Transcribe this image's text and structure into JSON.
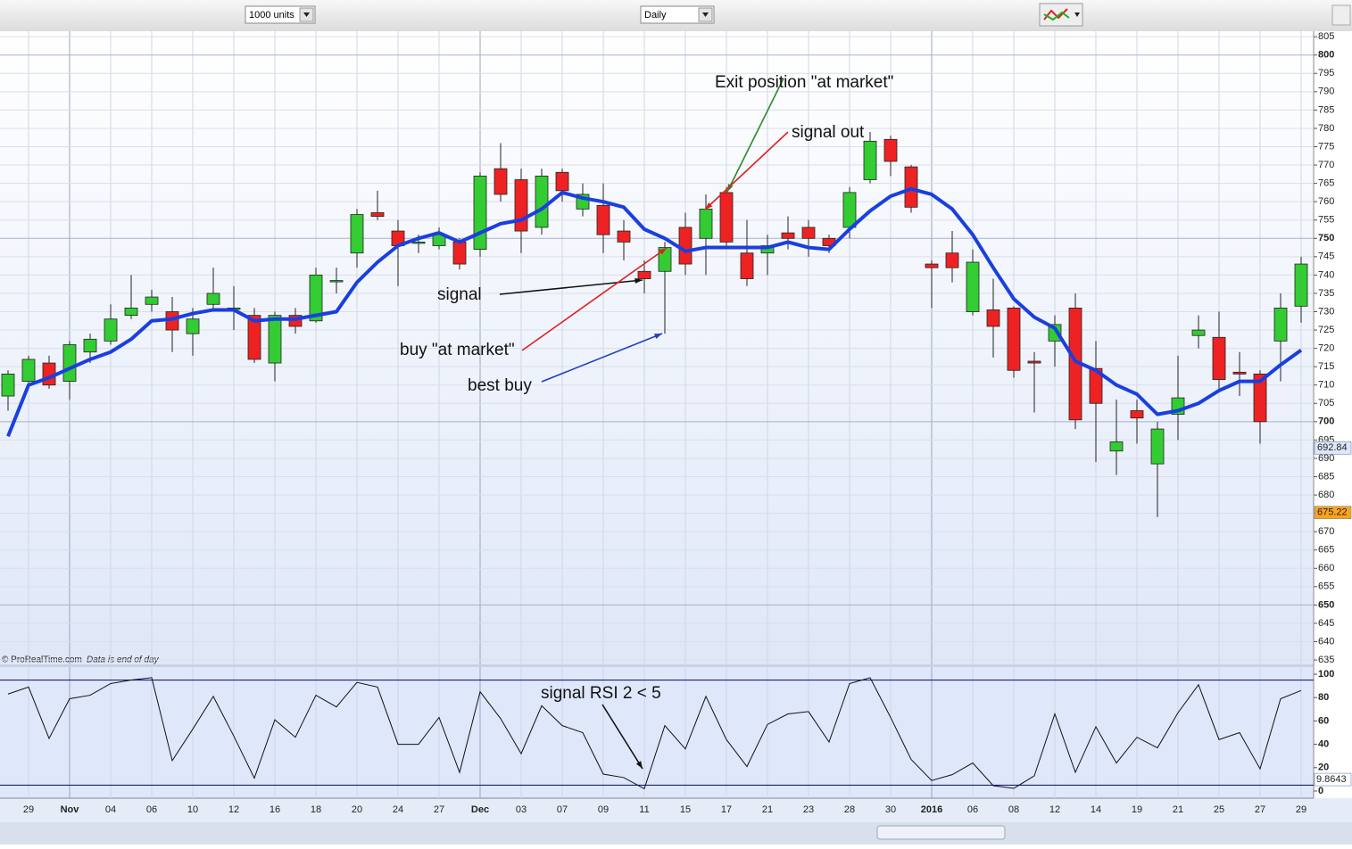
{
  "toolbar": {
    "units": "1000 units",
    "timeframe": "Daily"
  },
  "footer": {
    "source": "© ProRealTime.com",
    "note": "Data is end of day"
  },
  "chart_data": [
    {
      "type": "candlestick",
      "categories": [
        null,
        "29",
        null,
        "Nov",
        null,
        "04",
        null,
        "06",
        null,
        "10",
        null,
        "12",
        null,
        "16",
        null,
        "18",
        null,
        "20",
        null,
        "24",
        null,
        "27",
        null,
        "Dec",
        null,
        "03",
        null,
        "07",
        null,
        "09",
        null,
        "11",
        null,
        "15",
        null,
        "17",
        null,
        "21",
        null,
        "23",
        null,
        "28",
        null,
        "30",
        null,
        "2016",
        null,
        "06",
        null,
        "08",
        null,
        "12",
        null,
        "14",
        null,
        "19",
        null,
        "21",
        null,
        "25",
        null,
        "27",
        null,
        "29"
      ],
      "open": [
        707,
        711,
        716,
        711,
        719,
        722,
        729,
        732,
        730,
        724,
        732,
        731,
        729,
        716,
        729,
        727.5,
        738.5,
        746,
        757,
        752,
        749,
        748,
        749,
        747,
        769,
        766,
        753,
        768,
        758,
        759,
        752,
        741,
        741,
        753,
        750,
        762.5,
        746,
        746,
        751.5,
        753,
        750,
        753,
        766,
        777,
        769.5,
        743,
        746,
        730,
        730.5,
        731,
        716.5,
        722,
        731,
        714.5,
        692,
        703,
        688.5,
        702,
        723.5,
        723,
        713.5,
        713,
        722,
        731.5
      ],
      "high": [
        714,
        718,
        718,
        722,
        724,
        732,
        740,
        736,
        734,
        731,
        742,
        737,
        731,
        730,
        731,
        742,
        742,
        758,
        763,
        755,
        751,
        753,
        750,
        768,
        776,
        769,
        769,
        769,
        765,
        765,
        755,
        744,
        749,
        757,
        762,
        764,
        755,
        751,
        756,
        755,
        751,
        764,
        779,
        778,
        770,
        744,
        752,
        747,
        739,
        731.5,
        719,
        729,
        735,
        722,
        706,
        706,
        700,
        718,
        729,
        730,
        719,
        714,
        735,
        745
      ],
      "low": [
        703,
        710,
        709,
        706,
        716,
        721,
        728,
        730,
        719,
        718,
        730,
        725,
        716,
        711,
        724,
        727,
        735,
        742,
        755,
        737,
        746,
        747,
        741.5,
        745,
        760,
        746,
        751,
        760,
        756,
        746,
        744,
        735,
        724,
        740,
        740,
        747,
        737,
        740,
        747,
        745,
        746,
        750,
        765,
        767,
        757,
        731,
        738,
        729,
        717.5,
        712,
        702.5,
        715,
        698,
        689,
        685.5,
        694,
        674,
        695,
        720,
        709,
        707,
        694,
        711,
        727
      ],
      "close": [
        713,
        717,
        710,
        721,
        722.5,
        728,
        731,
        734,
        725,
        728,
        735,
        731,
        717,
        729,
        726,
        740,
        738.5,
        756.5,
        756,
        748,
        749,
        751,
        743,
        767,
        762,
        752,
        767,
        763,
        762,
        751,
        749,
        739,
        747.5,
        743,
        758,
        749,
        739,
        748,
        750,
        750,
        748,
        762.5,
        776.5,
        771,
        758.5,
        742,
        742,
        743.5,
        726,
        714,
        716,
        726.5,
        700.5,
        705,
        694.5,
        701,
        698,
        706.5,
        725,
        711.5,
        713,
        700,
        731,
        743
      ],
      "up_color": "#33cc33",
      "down_color": "#ee2222",
      "overlay": {
        "color": "#1a3fe0",
        "values": [
          696,
          710,
          712,
          714.5,
          717,
          719,
          722.5,
          727.5,
          728,
          729.5,
          730.5,
          730.5,
          727.5,
          728,
          728,
          729,
          730,
          738,
          743.5,
          748,
          750,
          751.5,
          749,
          751.5,
          754,
          755,
          758,
          762.5,
          761,
          760,
          758.5,
          752.5,
          750,
          746.5,
          747.5,
          747.5,
          747.5,
          747.5,
          749,
          747.5,
          747,
          752.5,
          757.5,
          761.5,
          763.5,
          762,
          758,
          751,
          742,
          733.5,
          728.5,
          725.5,
          716.5,
          714,
          710,
          707.5,
          702,
          703,
          705,
          708.5,
          711,
          711,
          715.5,
          719.5
        ]
      },
      "ylim": [
        633.8,
        806.5
      ],
      "yticks": [
        635,
        640,
        645,
        650,
        655,
        660,
        665,
        670,
        675,
        680,
        685,
        690,
        695,
        700,
        705,
        710,
        715,
        720,
        725,
        730,
        735,
        740,
        745,
        750,
        755,
        760,
        765,
        770,
        775,
        780,
        785,
        790,
        795,
        800,
        805
      ],
      "grid": true,
      "price_markers": [
        {
          "value": 692.84,
          "color": "#dce8f8"
        },
        {
          "value": 675.22,
          "color": "#ffa31a"
        }
      ],
      "annotations": [
        {
          "text": "Exit position \"at market\"",
          "arrow_color": "#2a8a2a"
        },
        {
          "text": "signal out",
          "arrow_color": "#e02020"
        },
        {
          "text": "signal",
          "arrow_color": "#111111"
        },
        {
          "text": "buy \"at market\"",
          "arrow_color": "#e02020"
        },
        {
          "text": "best buy",
          "arrow_color": "#1f3fbf"
        }
      ]
    },
    {
      "type": "line",
      "values": [
        83,
        89,
        45,
        79,
        82,
        92,
        95,
        97,
        26,
        53,
        81,
        47,
        11,
        61,
        46,
        82,
        72,
        93,
        89,
        40,
        40,
        63,
        16,
        85,
        62,
        32,
        73,
        56,
        50,
        14.5,
        11.5,
        2,
        56,
        36,
        81,
        44,
        21,
        57,
        66,
        68,
        42,
        92,
        97,
        63,
        27,
        9,
        14,
        24,
        4.6,
        2.3,
        13,
        66,
        16,
        55,
        24,
        46,
        37,
        67,
        91,
        44,
        50,
        19,
        79,
        86
      ],
      "color": "#111111",
      "ylim": [
        -6.1,
        106.1
      ],
      "yticks": [
        0,
        20,
        40,
        60,
        80,
        100
      ],
      "levels": [
        5,
        95
      ],
      "level_color": "#1a237e",
      "value_marker": 9.8643,
      "annotations": [
        {
          "text": "signal RSI 2 < 5",
          "arrow_color": "#111111"
        }
      ]
    }
  ]
}
